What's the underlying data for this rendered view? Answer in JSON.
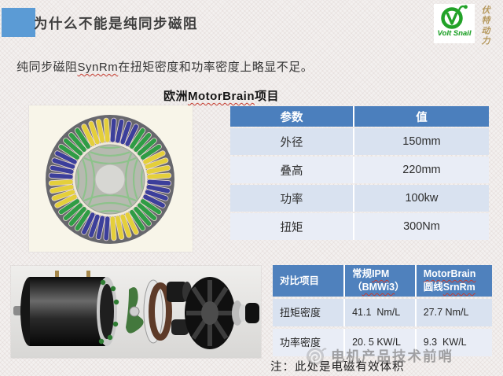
{
  "slide": {
    "title": "为什么不能是纯同步磁阻",
    "intro": {
      "pre": "纯同步磁阻",
      "highlight": "SynRm",
      "post": "在扭矩密度和功率密度上略显不足。"
    },
    "section_label": {
      "pre": "欧洲",
      "highlight": "MotorBrain",
      "post": "项目"
    },
    "note": "注：此处是电磁有效体积",
    "accent_color": "#5b9bd5"
  },
  "logo": {
    "wordmark": "Volt Snail",
    "tagline_vertical": "伏特动力",
    "brand_color": "#1fa32b",
    "tagline_color": "#b5985c"
  },
  "params_table": {
    "header": {
      "param": "参数",
      "value": "值"
    },
    "rows": [
      {
        "param": "外径",
        "value": "150mm"
      },
      {
        "param": "叠高",
        "value": "220mm"
      },
      {
        "param": "功率",
        "value": "100kw"
      },
      {
        "param": "扭矩",
        "value": "300Nm"
      }
    ],
    "header_bg": "#4b7fbd",
    "row_bg_odd": "#d9e2f0",
    "row_bg_even": "#e9edf6"
  },
  "compare_table": {
    "header": {
      "col1": "对比项目",
      "col2_line1_pre": "常规",
      "col2_line1_hl": "IPM",
      "col2_line2_open": "（",
      "col2_line2_hl": "BMWi3",
      "col2_line2_close": "）",
      "col3_line1_hl": "MotorBrain",
      "col3_line2_pre": "圆线",
      "col3_line2_hl": "SrnRm"
    },
    "rows": [
      {
        "label": "扭矩密度",
        "ipm": "41.1  Nm/L",
        "motorbrain": "27.7 Nm/L"
      },
      {
        "label": "功率密度",
        "ipm": "20. 5 KW/L",
        "motorbrain": "9.3  KW/L"
      }
    ],
    "header_bg": "#4f81bd"
  },
  "watermark": {
    "text": "电机产品技术前哨"
  }
}
